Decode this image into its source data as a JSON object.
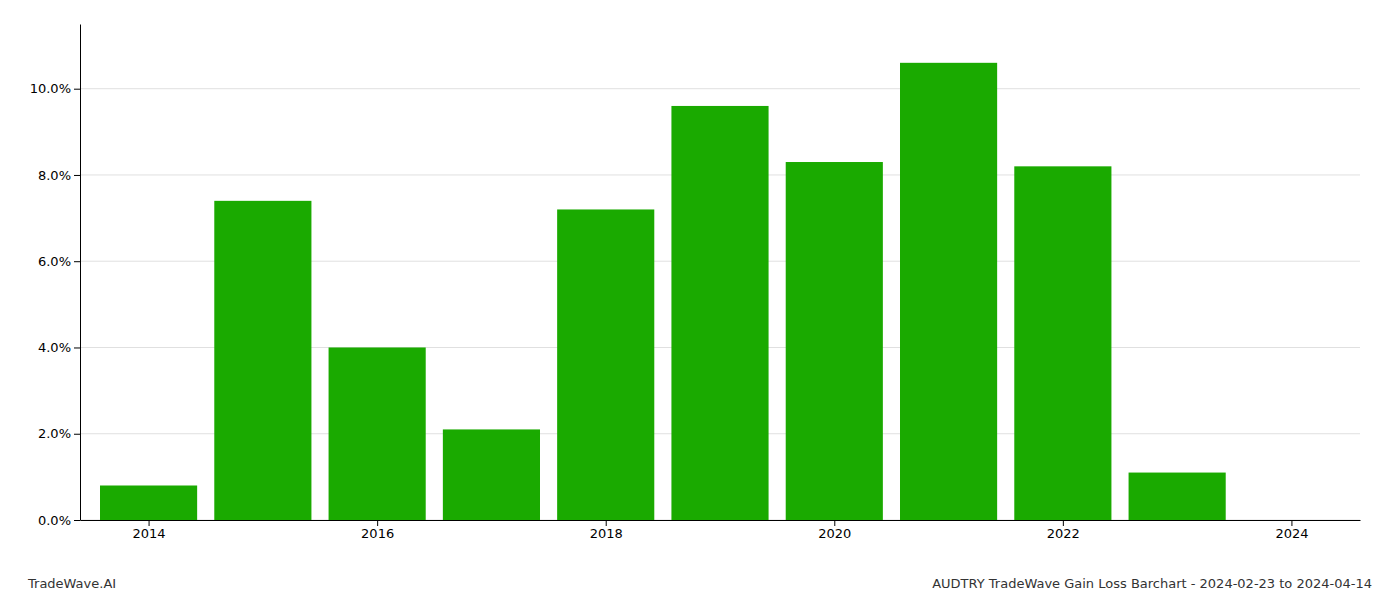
{
  "chart_data": {
    "type": "bar",
    "x": [
      2014,
      2015,
      2016,
      2017,
      2018,
      2019,
      2020,
      2021,
      2022,
      2023
    ],
    "values": [
      0.008,
      0.074,
      0.04,
      0.021,
      0.072,
      0.096,
      0.083,
      0.106,
      0.082,
      0.011
    ],
    "color": "#1aaa00",
    "xlim": [
      2013.4,
      2024.6
    ],
    "xticks": [
      2014,
      2016,
      2018,
      2020,
      2022,
      2024
    ],
    "ylim": [
      0,
      0.115
    ],
    "yticks": [
      {
        "value": 0.0,
        "label": "0.0%"
      },
      {
        "value": 0.02,
        "label": "2.0%"
      },
      {
        "value": 0.04,
        "label": "4.0%"
      },
      {
        "value": 0.06,
        "label": "6.0%"
      },
      {
        "value": 0.08,
        "label": "8.0%"
      },
      {
        "value": 0.1,
        "label": "10.0%"
      }
    ],
    "grid": true,
    "annotations": [
      "TradeWave.AI",
      "AUDTRY TradeWave Gain Loss Barchart - 2024-02-23 to 2024-04-14"
    ]
  }
}
